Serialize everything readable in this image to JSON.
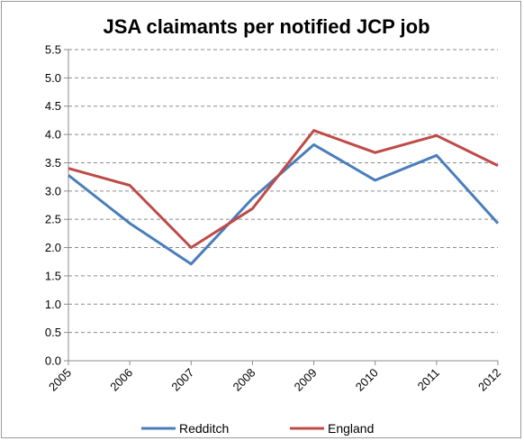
{
  "chart_data": {
    "type": "line",
    "title": "JSA claimants per notified JCP job",
    "xlabel": "",
    "ylabel": "",
    "categories": [
      "2005",
      "2006",
      "2007",
      "2008",
      "2009",
      "2010",
      "2011",
      "2012"
    ],
    "series": [
      {
        "name": "Redditch",
        "color": "#4a7ebb",
        "values": [
          3.28,
          2.43,
          1.71,
          2.87,
          3.82,
          3.19,
          3.63,
          2.43
        ]
      },
      {
        "name": "England",
        "color": "#be4b48",
        "values": [
          3.4,
          3.1,
          2.0,
          2.69,
          4.07,
          3.68,
          3.98,
          3.45
        ]
      }
    ],
    "ylim": [
      0,
      5.5
    ],
    "yticks": [
      "0.0",
      "0.5",
      "1.0",
      "1.5",
      "2.0",
      "2.5",
      "3.0",
      "3.5",
      "4.0",
      "4.5",
      "5.0",
      "5.5"
    ],
    "grid": true,
    "legend_position": "bottom"
  }
}
